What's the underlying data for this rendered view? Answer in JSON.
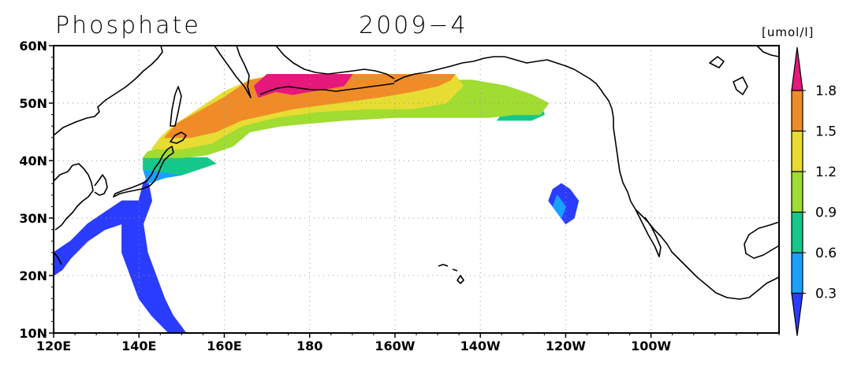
{
  "title": "Phosphate",
  "date": "2009−4",
  "units": "[umol/l]",
  "map": {
    "lon_range": [
      120,
      290
    ],
    "lat_range": [
      10,
      60
    ],
    "lon_ticks": [
      {
        "lon": 120,
        "label": "120E"
      },
      {
        "lon": 140,
        "label": "140E"
      },
      {
        "lon": 160,
        "label": "160E"
      },
      {
        "lon": 180,
        "label": "180"
      },
      {
        "lon": 200,
        "label": "160W"
      },
      {
        "lon": 220,
        "label": "140W"
      },
      {
        "lon": 240,
        "label": "120W"
      },
      {
        "lon": 260,
        "label": "100W"
      }
    ],
    "lat_ticks": [
      {
        "lat": 10,
        "label": "10N"
      },
      {
        "lat": 20,
        "label": "20N"
      },
      {
        "lat": 30,
        "label": "30N"
      },
      {
        "lat": 40,
        "label": "40N"
      },
      {
        "lat": 50,
        "label": "50N"
      },
      {
        "lat": 60,
        "label": "60N"
      }
    ],
    "grid": "dotted"
  },
  "colorbar": {
    "levels": [
      "0.3",
      "0.6",
      "0.9",
      "1.2",
      "1.5",
      "1.8"
    ],
    "colors": [
      "#2a3cff",
      "#1aa0ff",
      "#14c88c",
      "#a0dc32",
      "#e6dc32",
      "#f08c28",
      "#e6187c"
    ],
    "extend": "both"
  },
  "chart_data": {
    "type": "heatmap",
    "variable": "Phosphate",
    "units": "umol/l",
    "period": "2009-4",
    "xlim": [
      120,
      290
    ],
    "ylim": [
      10,
      60
    ],
    "bins": [
      "<0.3",
      "0.3-0.6",
      "0.6-0.9",
      "0.9-1.2",
      "1.2-1.5",
      "1.5-1.8",
      ">1.8"
    ],
    "regions": [
      {
        "bin": 0,
        "lonlat": [
          [
            120,
            20
          ],
          [
            120,
            24
          ],
          [
            124,
            26
          ],
          [
            128,
            29
          ],
          [
            132,
            31
          ],
          [
            136,
            33
          ],
          [
            140,
            33
          ],
          [
            141,
            36
          ],
          [
            142,
            37
          ],
          [
            143,
            33
          ],
          [
            141,
            29
          ],
          [
            142,
            24
          ],
          [
            144,
            20
          ],
          [
            146,
            16
          ],
          [
            148,
            13
          ],
          [
            150,
            11
          ],
          [
            151,
            10
          ],
          [
            147,
            10
          ],
          [
            143,
            13
          ],
          [
            140,
            16
          ],
          [
            138,
            20
          ],
          [
            136,
            24
          ],
          [
            136,
            29
          ],
          [
            132,
            28
          ],
          [
            128,
            26
          ],
          [
            124,
            23
          ],
          [
            122,
            21
          ]
        ]
      },
      {
        "bin": 0,
        "lonlat": [
          [
            239,
            36
          ],
          [
            241,
            35
          ],
          [
            243,
            33
          ],
          [
            242,
            30
          ],
          [
            240,
            29
          ],
          [
            238,
            31
          ],
          [
            236,
            33
          ],
          [
            237,
            35
          ]
        ]
      },
      {
        "bin": 1,
        "lonlat": [
          [
            142,
            36
          ],
          [
            146,
            37
          ],
          [
            150,
            37.5
          ],
          [
            147,
            39
          ],
          [
            143,
            39.5
          ],
          [
            141,
            38.5
          ]
        ]
      },
      {
        "bin": 1,
        "lonlat": [
          [
            238,
            34
          ],
          [
            240,
            32
          ],
          [
            239,
            30
          ],
          [
            237,
            32
          ]
        ]
      },
      {
        "bin": 2,
        "lonlat": [
          [
            141,
            38.5
          ],
          [
            146,
            38
          ],
          [
            150,
            37.5
          ],
          [
            154,
            38.5
          ],
          [
            158,
            39.5
          ],
          [
            156,
            40.5
          ],
          [
            150,
            40.5
          ],
          [
            145,
            41
          ],
          [
            141,
            40.5
          ]
        ]
      },
      {
        "bin": 2,
        "lonlat": [
          [
            224,
            47
          ],
          [
            232,
            47
          ],
          [
            235,
            48
          ],
          [
            234,
            50
          ],
          [
            231,
            50
          ],
          [
            226,
            49
          ]
        ]
      },
      {
        "bin": 3,
        "lonlat": [
          [
            141,
            40.5
          ],
          [
            150,
            40.5
          ],
          [
            156,
            41
          ],
          [
            162,
            42.5
          ],
          [
            166,
            45
          ],
          [
            173,
            46
          ],
          [
            180,
            46.5
          ],
          [
            188,
            47
          ],
          [
            200,
            47.5
          ],
          [
            212,
            47.5
          ],
          [
            222,
            47.5
          ],
          [
            228,
            48
          ],
          [
            234,
            48
          ],
          [
            236,
            50
          ],
          [
            232,
            51.5
          ],
          [
            226,
            53
          ],
          [
            218,
            54
          ],
          [
            208,
            54
          ],
          [
            204,
            55
          ],
          [
            196,
            55
          ],
          [
            190,
            55
          ],
          [
            185,
            55
          ],
          [
            180,
            54
          ],
          [
            172,
            53
          ],
          [
            166,
            52
          ],
          [
            161,
            50.5
          ],
          [
            156,
            47
          ],
          [
            150,
            44.5
          ],
          [
            146,
            42.5
          ],
          [
            142,
            41.5
          ]
        ]
      },
      {
        "bin": 4,
        "lonlat": [
          [
            143,
            42
          ],
          [
            150,
            42
          ],
          [
            157,
            43
          ],
          [
            164,
            46
          ],
          [
            172,
            47.5
          ],
          [
            182,
            48.5
          ],
          [
            194,
            49
          ],
          [
            204,
            49
          ],
          [
            212,
            50
          ],
          [
            216,
            53
          ],
          [
            214,
            55
          ],
          [
            200,
            55
          ],
          [
            190,
            55
          ],
          [
            180,
            55
          ],
          [
            172,
            55
          ],
          [
            166,
            54
          ],
          [
            160,
            52
          ],
          [
            154,
            49
          ],
          [
            148,
            46
          ],
          [
            145,
            44
          ]
        ]
      },
      {
        "bin": 5,
        "lonlat": [
          [
            146,
            44
          ],
          [
            152,
            44
          ],
          [
            158,
            45
          ],
          [
            164,
            47
          ],
          [
            170,
            48
          ],
          [
            176,
            49
          ],
          [
            186,
            50
          ],
          [
            196,
            51
          ],
          [
            204,
            52
          ],
          [
            210,
            53
          ],
          [
            213,
            54
          ],
          [
            214,
            55
          ],
          [
            188,
            55
          ],
          [
            174,
            55
          ],
          [
            166,
            54
          ],
          [
            160,
            51
          ],
          [
            154,
            48.5
          ],
          [
            149,
            46.5
          ]
        ]
      },
      {
        "bin": 6,
        "lonlat": [
          [
            168,
            51
          ],
          [
            172,
            52
          ],
          [
            176,
            51.5
          ],
          [
            180,
            52
          ],
          [
            184,
            52.5
          ],
          [
            188,
            53
          ],
          [
            190,
            55
          ],
          [
            170,
            55
          ],
          [
            167,
            53
          ]
        ]
      }
    ]
  }
}
